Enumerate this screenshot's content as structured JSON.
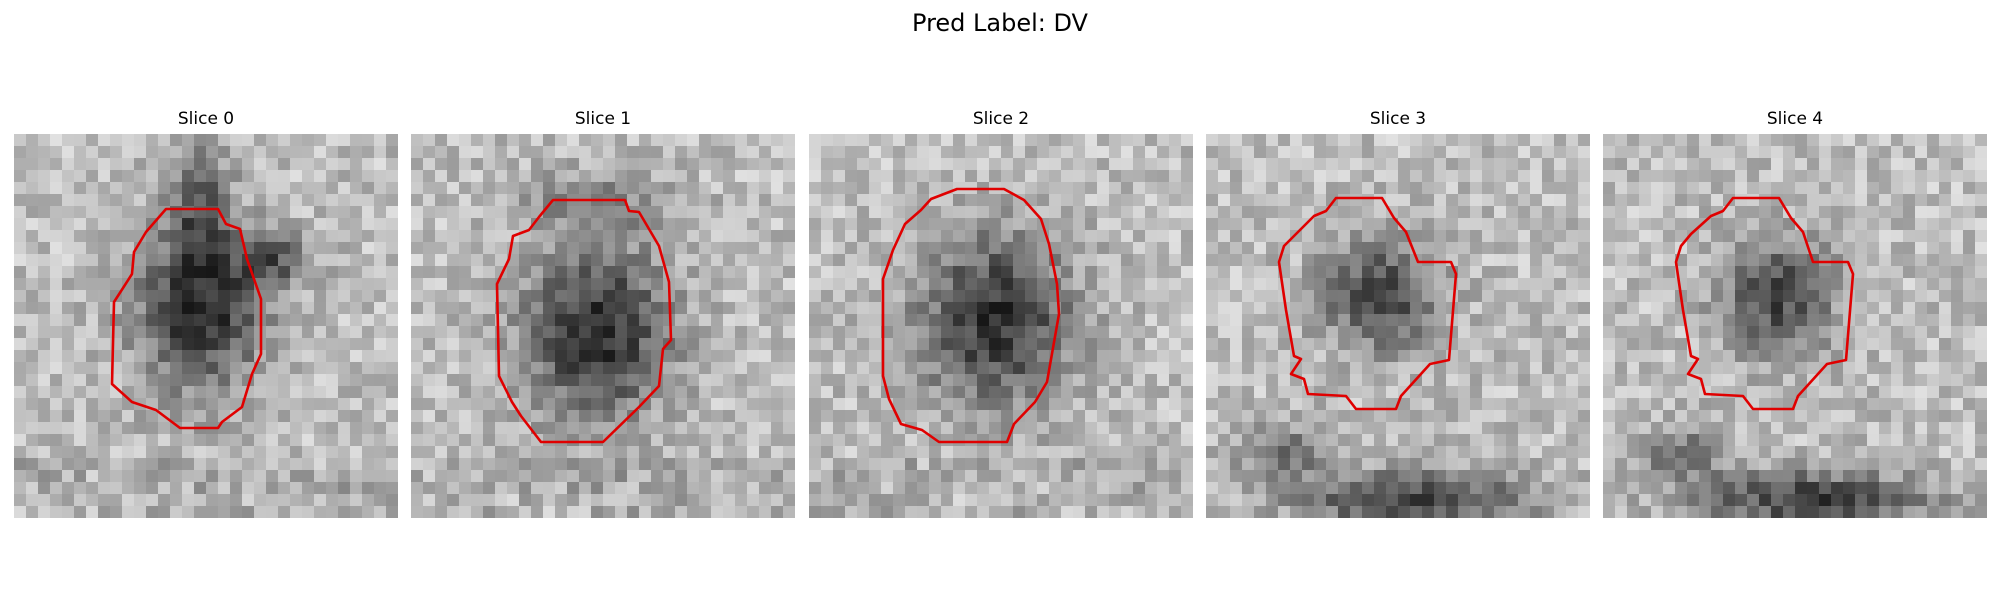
{
  "figure": {
    "title": "Pred Label: DV",
    "contour_color": "#e00000",
    "colormap": "grayscale",
    "panels": [
      {
        "title": "Slice 0"
      },
      {
        "title": "Slice 1"
      },
      {
        "title": "Slice 2"
      },
      {
        "title": "Slice 3"
      },
      {
        "title": "Slice 4"
      }
    ]
  }
}
